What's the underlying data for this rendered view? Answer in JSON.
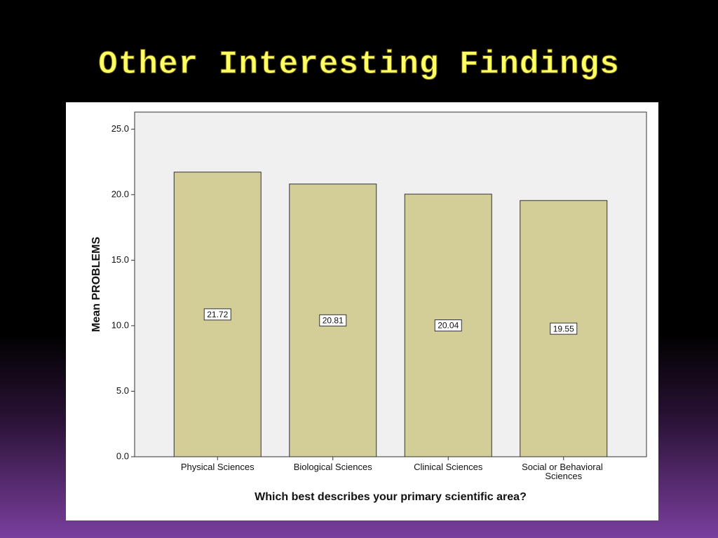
{
  "chart_data": {
    "type": "bar",
    "title": "Other Interesting Findings",
    "x_label": "Which best describes your primary scientific area?",
    "y_label": "Mean PROBLEMS",
    "categories": [
      "Physical Sciences",
      "Biological Sciences",
      "Clinical Sciences",
      "Social or Behavioral Sciences"
    ],
    "values": [
      21.72,
      20.81,
      20.04,
      19.55
    ],
    "color": "#d3cd98",
    "ylim": [
      0,
      26.3
    ],
    "yticks": [
      {
        "value": 0,
        "label": "0.0"
      },
      {
        "value": 5,
        "label": "5.0"
      },
      {
        "value": 10,
        "label": "10.0"
      },
      {
        "value": 15,
        "label": "15.0"
      },
      {
        "value": 20,
        "label": "20.0"
      },
      {
        "value": 25,
        "label": "25.0"
      }
    ],
    "grid": false
  }
}
